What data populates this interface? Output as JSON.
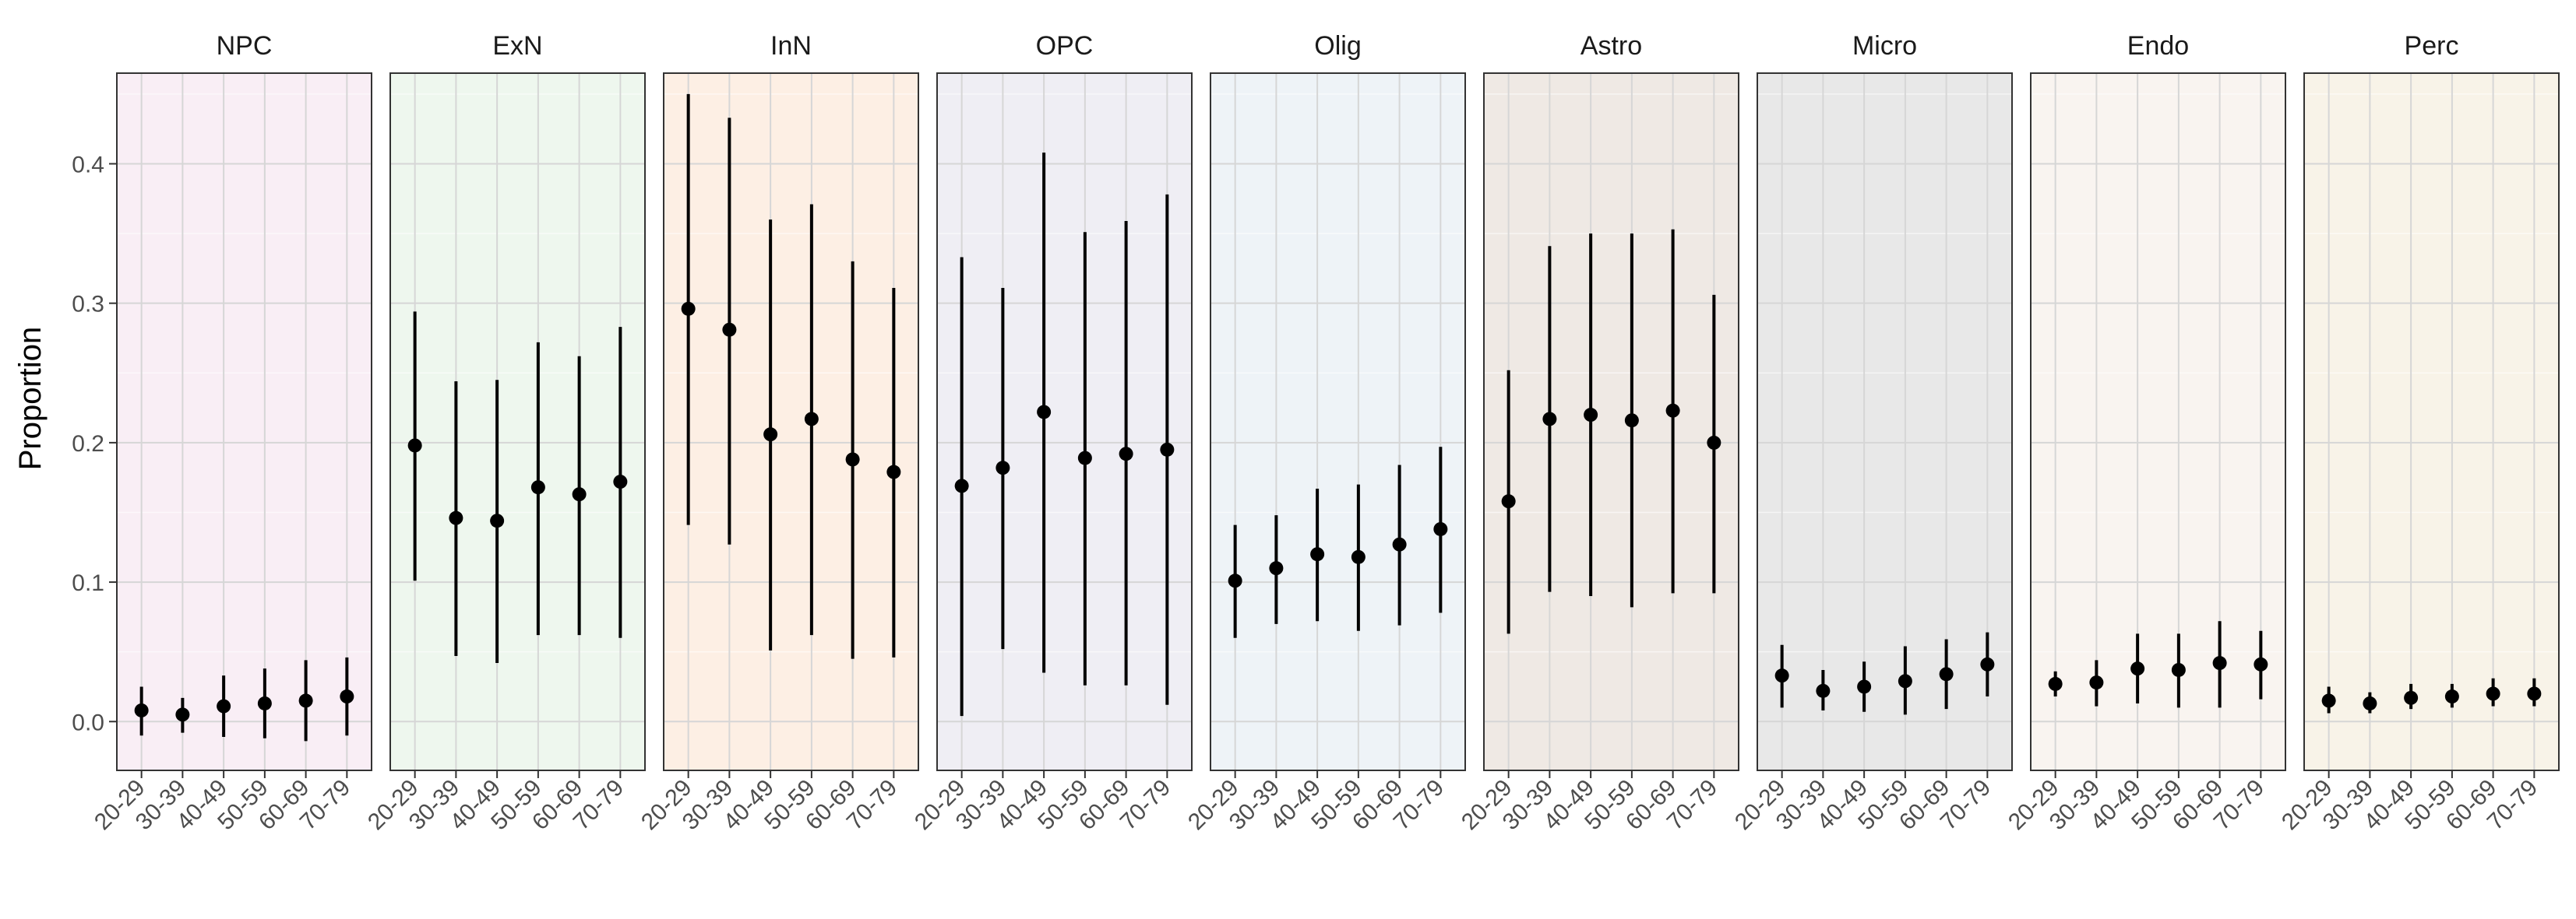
{
  "chart_data": {
    "type": "scatter",
    "subtype": "point-range faceted",
    "ylabel": "Proportion",
    "xlabel": "",
    "ylim": [
      -0.035,
      0.465
    ],
    "yticks": [
      0.0,
      0.1,
      0.2,
      0.3,
      0.4
    ],
    "ytick_labels": [
      "0.0",
      "0.1",
      "0.2",
      "0.3",
      "0.4"
    ],
    "categories": [
      "20-29",
      "30-39",
      "40-49",
      "50-59",
      "60-69",
      "70-79"
    ],
    "grid": true,
    "legend": "none",
    "facets": [
      {
        "name": "NPC",
        "fill": "#f9eef5",
        "values": [
          0.008,
          0.005,
          0.011,
          0.013,
          0.015,
          0.018
        ],
        "lower": [
          -0.01,
          -0.008,
          -0.011,
          -0.012,
          -0.014,
          -0.01
        ],
        "upper": [
          0.025,
          0.017,
          0.033,
          0.038,
          0.044,
          0.046
        ]
      },
      {
        "name": "ExN",
        "fill": "#eef7ee",
        "values": [
          0.198,
          0.146,
          0.144,
          0.168,
          0.163,
          0.172
        ],
        "lower": [
          0.101,
          0.047,
          0.042,
          0.062,
          0.062,
          0.06
        ],
        "upper": [
          0.294,
          0.244,
          0.245,
          0.272,
          0.262,
          0.283
        ]
      },
      {
        "name": "InN",
        "fill": "#fdefe4",
        "values": [
          0.296,
          0.281,
          0.206,
          0.217,
          0.188,
          0.179
        ],
        "lower": [
          0.141,
          0.127,
          0.051,
          0.062,
          0.045,
          0.046
        ],
        "upper": [
          0.45,
          0.433,
          0.36,
          0.371,
          0.33,
          0.311
        ]
      },
      {
        "name": "OPC",
        "fill": "#efeef4",
        "values": [
          0.169,
          0.182,
          0.222,
          0.189,
          0.192,
          0.195
        ],
        "lower": [
          0.004,
          0.052,
          0.035,
          0.026,
          0.026,
          0.012
        ],
        "upper": [
          0.333,
          0.311,
          0.408,
          0.351,
          0.359,
          0.378
        ]
      },
      {
        "name": "Olig",
        "fill": "#eef3f7",
        "values": [
          0.101,
          0.11,
          0.12,
          0.118,
          0.127,
          0.138
        ],
        "lower": [
          0.06,
          0.07,
          0.072,
          0.065,
          0.069,
          0.078
        ],
        "upper": [
          0.141,
          0.148,
          0.167,
          0.17,
          0.184,
          0.197
        ]
      },
      {
        "name": "Astro",
        "fill": "#efe9e4",
        "values": [
          0.158,
          0.217,
          0.22,
          0.216,
          0.223,
          0.2
        ],
        "lower": [
          0.063,
          0.093,
          0.09,
          0.082,
          0.092,
          0.092
        ],
        "upper": [
          0.252,
          0.341,
          0.35,
          0.35,
          0.353,
          0.306
        ]
      },
      {
        "name": "Micro",
        "fill": "#e8e8e8",
        "values": [
          0.033,
          0.022,
          0.025,
          0.029,
          0.034,
          0.041
        ],
        "lower": [
          0.01,
          0.008,
          0.007,
          0.005,
          0.009,
          0.018
        ],
        "upper": [
          0.055,
          0.037,
          0.043,
          0.054,
          0.059,
          0.064
        ]
      },
      {
        "name": "Endo",
        "fill": "#f9f4f0",
        "values": [
          0.027,
          0.028,
          0.038,
          0.037,
          0.042,
          0.041
        ],
        "lower": [
          0.018,
          0.011,
          0.013,
          0.01,
          0.01,
          0.016
        ],
        "upper": [
          0.036,
          0.044,
          0.063,
          0.063,
          0.072,
          0.065
        ]
      },
      {
        "name": "Perc",
        "fill": "#f8f3e8",
        "values": [
          0.015,
          0.013,
          0.017,
          0.018,
          0.02,
          0.02
        ],
        "lower": [
          0.006,
          0.006,
          0.009,
          0.01,
          0.011,
          0.011
        ],
        "upper": [
          0.025,
          0.021,
          0.027,
          0.027,
          0.031,
          0.031
        ]
      }
    ]
  }
}
